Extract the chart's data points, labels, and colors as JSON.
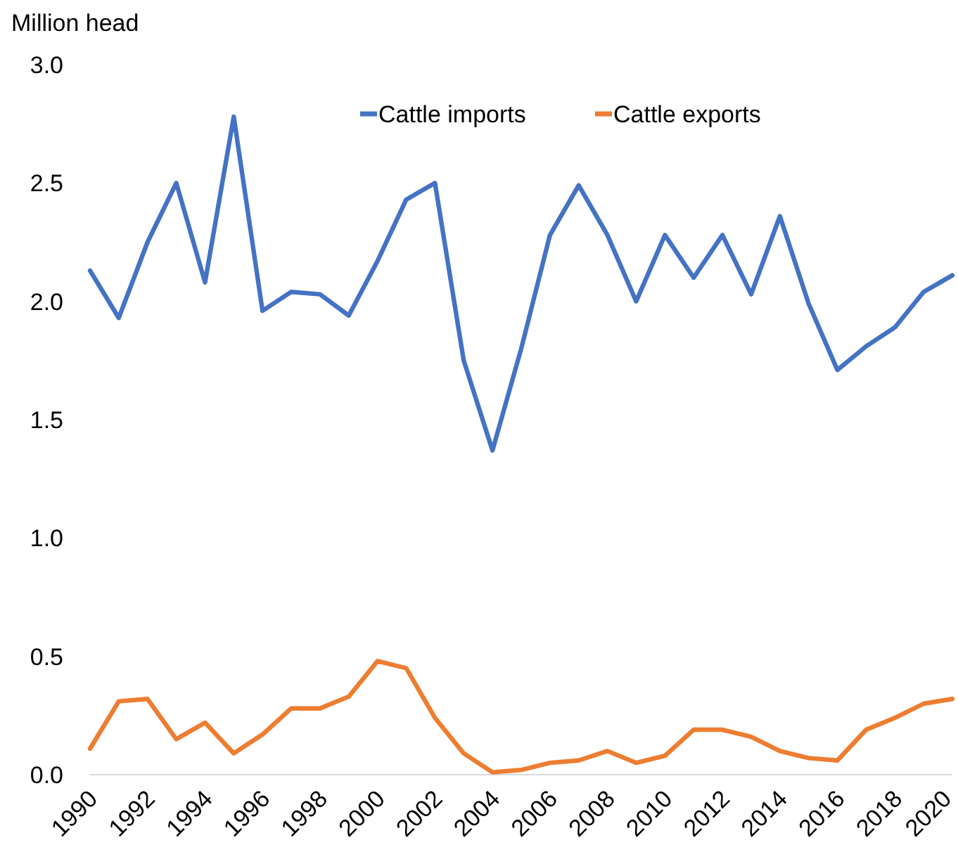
{
  "chart_data": {
    "type": "line",
    "ylabel": "Million head",
    "x": [
      1990,
      1991,
      1992,
      1993,
      1994,
      1995,
      1996,
      1997,
      1998,
      1999,
      2000,
      2001,
      2002,
      2003,
      2004,
      2005,
      2006,
      2007,
      2008,
      2009,
      2010,
      2011,
      2012,
      2013,
      2014,
      2015,
      2016,
      2017,
      2018,
      2019,
      2020
    ],
    "series": [
      {
        "name": "Cattle imports",
        "color": "#4472c4",
        "values": [
          2.13,
          1.93,
          2.25,
          2.5,
          2.08,
          2.78,
          1.96,
          2.04,
          2.03,
          1.94,
          2.17,
          2.43,
          2.5,
          1.75,
          1.37,
          1.8,
          2.28,
          2.49,
          2.28,
          2.0,
          2.28,
          2.1,
          2.28,
          2.03,
          2.36,
          1.99,
          1.71,
          1.81,
          1.89,
          2.04,
          2.11
        ]
      },
      {
        "name": "Cattle exports",
        "color": "#ed7d31",
        "values": [
          0.11,
          0.31,
          0.32,
          0.15,
          0.22,
          0.09,
          0.17,
          0.28,
          0.28,
          0.33,
          0.48,
          0.45,
          0.24,
          0.09,
          0.01,
          0.02,
          0.05,
          0.06,
          0.1,
          0.05,
          0.08,
          0.19,
          0.19,
          0.16,
          0.1,
          0.07,
          0.06,
          0.19,
          0.24,
          0.3,
          0.32
        ]
      }
    ],
    "xlim": [
      1990,
      2020
    ],
    "xticks": [
      1990,
      1992,
      1994,
      1996,
      1998,
      2000,
      2002,
      2004,
      2006,
      2008,
      2010,
      2012,
      2014,
      2016,
      2018,
      2020
    ],
    "ylim": [
      0,
      3
    ],
    "yticks": [
      {
        "value": 0,
        "label": "0.0"
      },
      {
        "value": 0.5,
        "label": "0.5"
      },
      {
        "value": 1,
        "label": "1.0"
      },
      {
        "value": 1.5,
        "label": "1.5"
      },
      {
        "value": 2,
        "label": "2.0"
      },
      {
        "value": 2.5,
        "label": "2.5"
      },
      {
        "value": 3,
        "label": "3.0"
      }
    ],
    "grid": false,
    "legend": "top",
    "marker": "none",
    "line_style": "solid"
  }
}
